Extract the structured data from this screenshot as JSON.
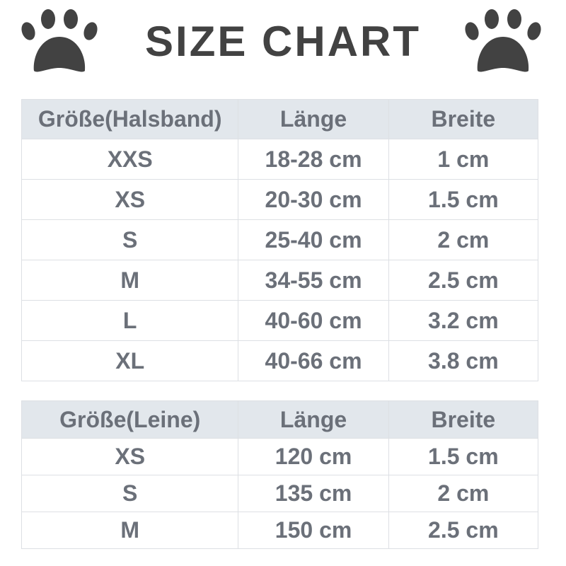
{
  "title": "SIZE CHART",
  "icons": {
    "left": "paw-print-icon",
    "right": "paw-print-icon"
  },
  "colors": {
    "header_bg": "#e2e7ec",
    "text": "#6b7079",
    "title": "#424242"
  },
  "collar_table": {
    "headers": [
      "Größe(Halsband)",
      "Länge",
      "Breite"
    ],
    "rows": [
      [
        "XXS",
        "18-28 cm",
        "1 cm"
      ],
      [
        "XS",
        "20-30 cm",
        "1.5 cm"
      ],
      [
        "S",
        "25-40 cm",
        "2 cm"
      ],
      [
        "M",
        "34-55 cm",
        "2.5 cm"
      ],
      [
        "L",
        "40-60 cm",
        "3.2 cm"
      ],
      [
        "XL",
        "40-66 cm",
        "3.8 cm"
      ]
    ]
  },
  "leash_table": {
    "headers": [
      "Größe(Leine)",
      "Länge",
      "Breite"
    ],
    "rows": [
      [
        "XS",
        "120 cm",
        "1.5 cm"
      ],
      [
        "S",
        "135 cm",
        "2 cm"
      ],
      [
        "M",
        "150 cm",
        "2.5 cm"
      ]
    ]
  }
}
